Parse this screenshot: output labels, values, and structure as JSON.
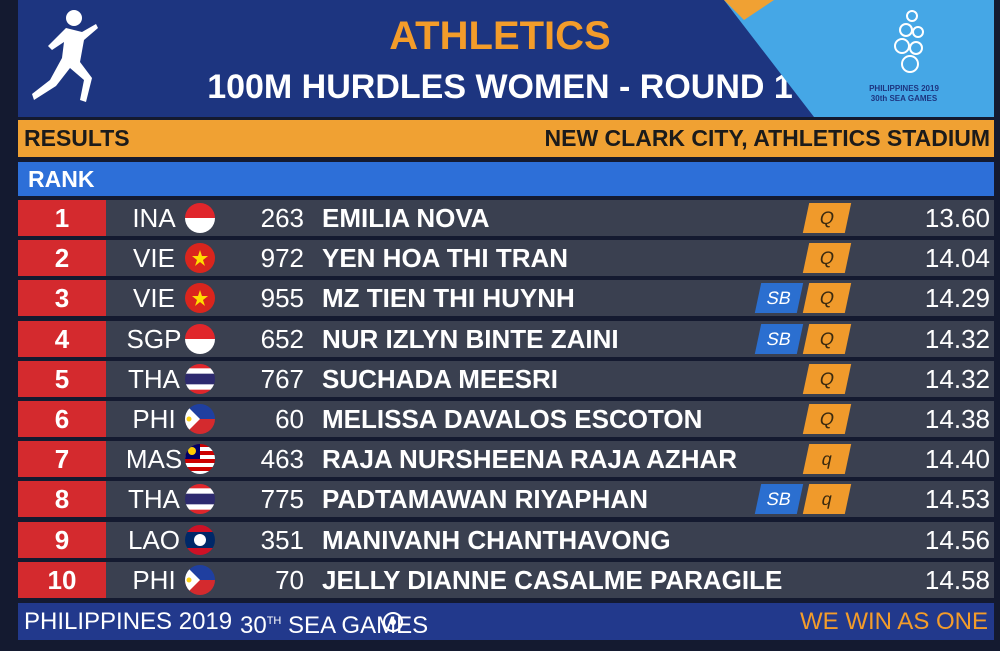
{
  "header": {
    "title": "ATHLETICS",
    "subtitle": "100M HURDLES WOMEN - ROUND 1",
    "logo": {
      "line1": "PHILIPPINES 2019",
      "line2": "30th SEA GAMES"
    }
  },
  "results_bar": {
    "left": "RESULTS",
    "right": "NEW CLARK CITY, ATHLETICS STADIUM"
  },
  "column_header": "RANK",
  "rows": [
    {
      "rank": 1,
      "country": "INA",
      "bib": 263,
      "name": "EMILIA NOVA",
      "q": "Q",
      "time": "13.60"
    },
    {
      "rank": 2,
      "country": "VIE",
      "bib": 972,
      "name": "YEN HOA THI TRAN",
      "q": "Q",
      "time": "14.04"
    },
    {
      "rank": 3,
      "country": "VIE",
      "bib": 955,
      "name": "MZ TIEN THI HUYNH",
      "sb": "SB",
      "q": "Q",
      "time": "14.29"
    },
    {
      "rank": 4,
      "country": "SGP",
      "bib": 652,
      "name": "NUR IZLYN BINTE ZAINI",
      "sb": "SB",
      "q": "Q",
      "time": "14.32"
    },
    {
      "rank": 5,
      "country": "THA",
      "bib": 767,
      "name": "SUCHADA MEESRI",
      "q": "Q",
      "time": "14.32"
    },
    {
      "rank": 6,
      "country": "PHI",
      "bib": 60,
      "name": "MELISSA DAVALOS ESCOTON",
      "q": "Q",
      "time": "14.38"
    },
    {
      "rank": 7,
      "country": "MAS",
      "bib": 463,
      "name": "RAJA NURSHEENA RAJA AZHAR",
      "q": "q",
      "time": "14.40"
    },
    {
      "rank": 8,
      "country": "THA",
      "bib": 775,
      "name": "PADTAMAWAN RIYAPHAN",
      "sb": "SB",
      "q": "q",
      "time": "14.53"
    },
    {
      "rank": 9,
      "country": "LAO",
      "bib": 351,
      "name": "MANIVANH CHANTHAVONG",
      "time": "14.56"
    },
    {
      "rank": 10,
      "country": "PHI",
      "bib": 70,
      "name": "JELLY DIANNE CASALME PARAGILE",
      "time": "14.58"
    }
  ],
  "footer": {
    "left": "PHILIPPINES 2019",
    "games": {
      "number": "30",
      "suffix": "TH",
      "text": "SEA GAMES"
    },
    "right": "WE WIN AS ONE"
  }
}
